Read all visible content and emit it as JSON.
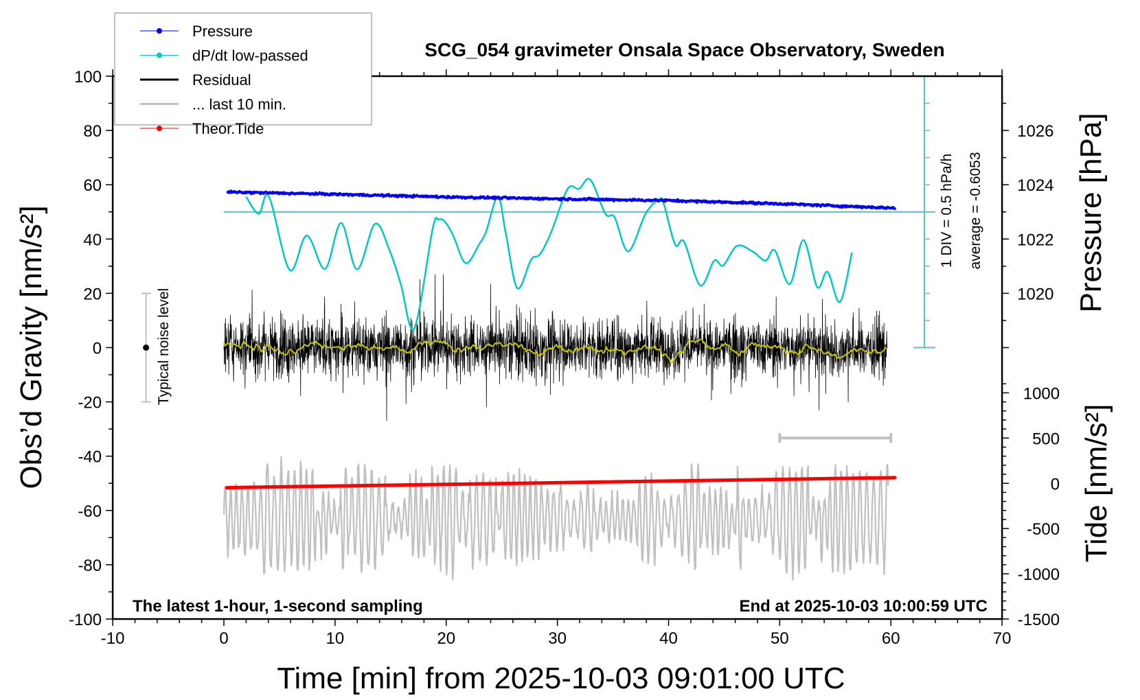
{
  "chart_data": {
    "type": "line",
    "title": "SCG_054 gravimeter Onsala Space Observatory, Sweden",
    "xlabel": "Time [min] from 2025-10-03 09:01:00 UTC",
    "ylabel": "Obs’d Gravity [nm/s²]",
    "y2label_pressure": "Pressure [hPa]",
    "y2label_tide": "Tide [nm/s²]",
    "xlim": [
      -10,
      70
    ],
    "ylim": [
      -100,
      100
    ],
    "grid": false,
    "legend_position": "top-left",
    "annotations": {
      "bottom_left": "The latest 1-hour, 1-second sampling",
      "bottom_right": "End at 2025-10-03 10:00:59 UTC",
      "noise_label": "Typical noise level",
      "dpdt_scale": "1 DIV = 0.5 hPa/h",
      "dpdt_average": "average = -0.6053"
    },
    "axes": {
      "x": {
        "ticks": [
          "-10",
          "0",
          "10",
          "20",
          "30",
          "40",
          "50",
          "60",
          "70"
        ]
      },
      "y_left": {
        "ticks": [
          "-100",
          "-80",
          "-60",
          "-40",
          "-20",
          "0",
          "20",
          "40",
          "60",
          "80",
          "100"
        ]
      },
      "y_pressure": {
        "ticks": [
          "1020",
          "1022",
          "1024",
          "1026"
        ]
      },
      "y_tide": {
        "ticks": [
          "-1500",
          "-1000",
          "-500",
          "0",
          "500",
          "1000"
        ]
      }
    },
    "legend": [
      {
        "label": "Pressure",
        "color": "#0000ff",
        "marker": true
      },
      {
        "label": "dP/dt low-passed",
        "color": "#00c8c8",
        "marker": true
      },
      {
        "label": "Residual",
        "color": "#000000",
        "marker": false
      },
      {
        "label": "... last 10 min.",
        "color": "#c0c0c0",
        "marker": false
      },
      {
        "label": "Theor.Tide",
        "color": "#ff0000",
        "marker": true
      }
    ],
    "series": {
      "pressure_hpa": {
        "name": "Pressure",
        "x": [
          0.35,
          10,
          20,
          30,
          40,
          50,
          60.4
        ],
        "y": [
          1023.73,
          1023.65,
          1023.55,
          1023.48,
          1023.42,
          1023.3,
          1023.14
        ],
        "noise_hpa": 0.04
      },
      "dpdt_hpa_per_h": {
        "name": "dP/dt low-passed",
        "zero_on_left_axis": 50,
        "x": [
          2.0,
          3.13,
          4.06,
          5.91,
          7.45,
          9.1,
          10.54,
          11.98,
          13.59,
          14.87,
          15.9,
          17.13,
          18.78,
          19.29,
          19.9,
          20.63,
          21.76,
          23.0,
          23.6,
          24.65,
          25.36,
          26.4,
          27.63,
          28.46,
          29.48,
          30.93,
          31.95,
          32.96,
          34.32,
          35.15,
          36.38,
          37.93,
          39.16,
          39.57,
          40.6,
          41.4,
          42.84,
          44.1,
          44.92,
          46.16,
          47.6,
          48.73,
          49.56,
          50.9,
          52.13,
          53.37,
          54.3,
          55.42,
          56.5
        ],
        "y": [
          0.28,
          -0.035,
          0.28,
          -1.07,
          -0.435,
          -1.05,
          -0.205,
          -1.06,
          -0.22,
          -0.69,
          -1.32,
          -2.145,
          -0.31,
          -0.14,
          -0.185,
          -0.435,
          -0.945,
          -0.585,
          -0.355,
          0.28,
          -0.395,
          -1.405,
          -0.88,
          -0.775,
          -0.355,
          0.425,
          0.425,
          0.595,
          -0.035,
          -0.1,
          -0.725,
          -0.035,
          0.235,
          0.15,
          -0.605,
          -0.55,
          -1.355,
          -0.9,
          -0.985,
          -0.625,
          -0.735,
          -0.9,
          -0.71,
          -1.33,
          -0.52,
          -1.385,
          -1.105,
          -1.66,
          -0.745
        ]
      },
      "residual": {
        "name": "Residual",
        "x_range": [
          0,
          59.7
        ],
        "typical_amplitude": 12,
        "max_amplitude": 27,
        "smoothed_color": "#c8c800"
      },
      "last10min": {
        "name": "... last 10 min.",
        "window_min": [
          50,
          60
        ],
        "center": -63,
        "amplitude_range": [
          5,
          21
        ],
        "period_min": 0.55
      },
      "theor_tide": {
        "name": "Theor.Tide",
        "x": [
          0.25,
          60.35
        ],
        "y": [
          -48,
          63
        ]
      }
    },
    "noise_level": {
      "x": -7,
      "center": 0,
      "range": [
        -20,
        20
      ]
    }
  }
}
